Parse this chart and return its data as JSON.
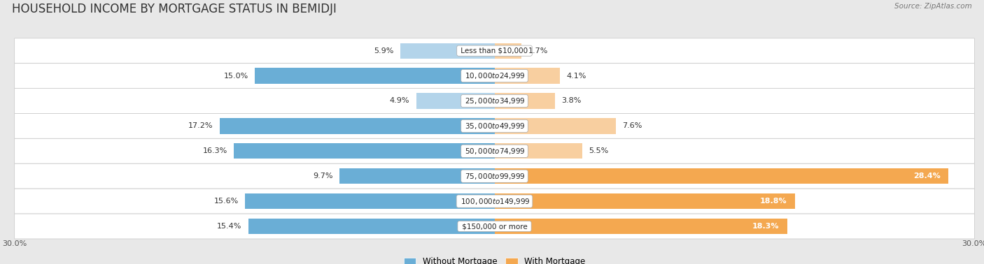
{
  "title": "HOUSEHOLD INCOME BY MORTGAGE STATUS IN BEMIDJI",
  "source": "Source: ZipAtlas.com",
  "categories": [
    "Less than $10,000",
    "$10,000 to $24,999",
    "$25,000 to $34,999",
    "$35,000 to $49,999",
    "$50,000 to $74,999",
    "$75,000 to $99,999",
    "$100,000 to $149,999",
    "$150,000 or more"
  ],
  "without_mortgage": [
    5.9,
    15.0,
    4.9,
    17.2,
    16.3,
    9.7,
    15.6,
    15.4
  ],
  "with_mortgage": [
    1.7,
    4.1,
    3.8,
    7.6,
    5.5,
    28.4,
    18.8,
    18.3
  ],
  "without_mortgage_color_dark": "#6aaed6",
  "without_mortgage_color_light": "#b3d4ea",
  "with_mortgage_color_dark": "#f4a850",
  "with_mortgage_color_light": "#f8cfA0",
  "xlim": 30.0,
  "background_color": "#e8e8e8",
  "row_bg_color": "#ffffff",
  "row_border_color": "#cccccc",
  "legend_without": "Without Mortgage",
  "legend_with": "With Mortgage",
  "bar_height": 0.62,
  "title_fontsize": 12,
  "label_fontsize": 8,
  "category_fontsize": 7.5,
  "axis_fontsize": 8,
  "dark_threshold_without": 9.0,
  "dark_threshold_with": 9.0
}
